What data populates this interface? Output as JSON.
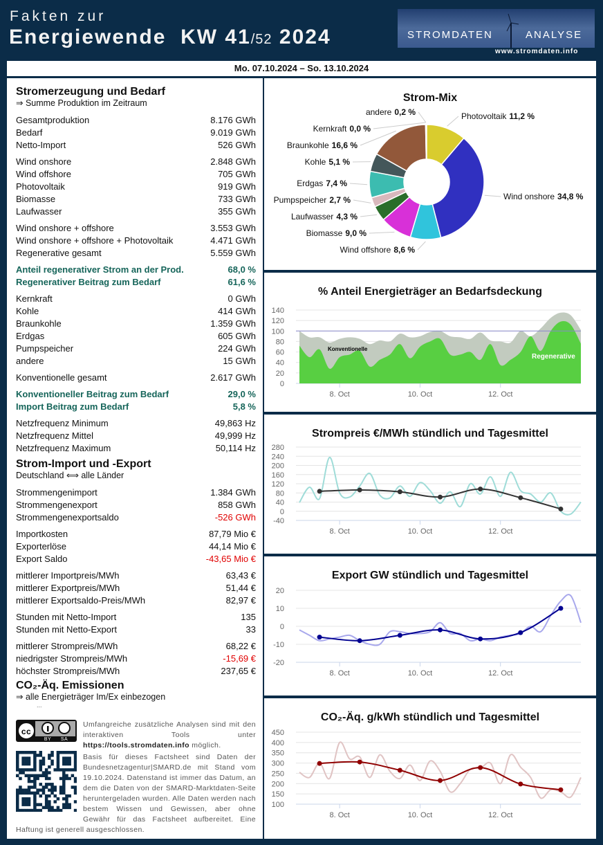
{
  "header": {
    "line1": "Fakten zur",
    "title_main": "Energiewende  KW 41",
    "title_week_total": "/52",
    "title_year": " 2024",
    "logo_left": "STROMDATEN",
    "logo_right": "ANALYSE",
    "url": "www.stromdaten.info",
    "date_range": "Mo. 07.10.2024 – So. 13.10.2024"
  },
  "left": {
    "sec1": {
      "title": "Stromerzeugung und Bedarf",
      "subtitle": "⇒ Summe Produktion im Zeitraum"
    },
    "groups1": [
      [
        {
          "label": "Gesamtproduktion",
          "value": "8.176 GWh"
        },
        {
          "label": "Bedarf",
          "value": "9.019 GWh"
        },
        {
          "label": "Netto-Import",
          "value": "526 GWh"
        }
      ],
      [
        {
          "label": "Wind onshore",
          "value": "2.848 GWh"
        },
        {
          "label": "Wind offshore",
          "value": "705 GWh"
        },
        {
          "label": "Photovoltaik",
          "value": "919 GWh"
        },
        {
          "label": "Biomasse",
          "value": "733 GWh"
        },
        {
          "label": "Laufwasser",
          "value": "355 GWh"
        }
      ],
      [
        {
          "label": "Wind onshore + offshore",
          "value": "3.553 GWh"
        },
        {
          "label": "Wind onshore + offshore + Photovoltaik",
          "value": "4.471 GWh"
        },
        {
          "label": "Regenerative gesamt",
          "value": "5.559 GWh"
        }
      ],
      [
        {
          "label": "Anteil regenerativer Strom an der Prod.",
          "value": "68,0 %",
          "style": "teal"
        },
        {
          "label": "Regenerativer Beitrag zum Bedarf",
          "value": "61,6 %",
          "style": "teal"
        }
      ],
      [
        {
          "label": "Kernkraft",
          "value": "0 GWh"
        },
        {
          "label": "Kohle",
          "value": "414 GWh"
        },
        {
          "label": "Braunkohle",
          "value": "1.359 GWh"
        },
        {
          "label": "Erdgas",
          "value": "605 GWh"
        },
        {
          "label": "Pumpspeicher",
          "value": "224 GWh"
        },
        {
          "label": "andere",
          "value": "15 GWh"
        }
      ],
      [
        {
          "label": "Konventionelle gesamt",
          "value": "2.617 GWh"
        }
      ],
      [
        {
          "label": "Konventioneller Beitrag zum Bedarf",
          "value": "29,0 %",
          "style": "teal"
        },
        {
          "label": "Import Beitrag zum Bedarf",
          "value": "5,8 %",
          "style": "teal"
        }
      ],
      [
        {
          "label": "Netzfrequenz Minimum",
          "value": "49,863 Hz"
        },
        {
          "label": "Netzfrequenz Mittel",
          "value": "49,999 Hz"
        },
        {
          "label": "Netzfrequenz Maximum",
          "value": "50,114 Hz"
        }
      ]
    ],
    "sec2": {
      "title": "Strom-Import und -Export",
      "subtitle": "Deutschland ⟺ alle Länder"
    },
    "groups2": [
      [
        {
          "label": "Strommengenimport",
          "value": "1.384 GWh"
        },
        {
          "label": "Strommengenexport",
          "value": "858 GWh"
        },
        {
          "label": "Strommengenexportsaldo",
          "value": "-526 GWh",
          "style": "red"
        }
      ],
      [
        {
          "label": "Importkosten",
          "value": "87,79 Mio €"
        },
        {
          "label": "Exporterlöse",
          "value": "44,14 Mio €"
        },
        {
          "label": "Export Saldo",
          "value": "-43,65 Mio €",
          "style": "red"
        }
      ],
      [
        {
          "label": "mittlerer Importpreis/MWh",
          "value": "63,43 €"
        },
        {
          "label": "mittlerer Exportpreis/MWh",
          "value": "51,44 €"
        },
        {
          "label": "mittlerer Exportsaldo-Preis/MWh",
          "value": "82,97 €"
        }
      ],
      [
        {
          "label": "Stunden mit Netto-Import",
          "value": "135"
        },
        {
          "label": "Stunden mit Netto-Export",
          "value": "33"
        }
      ],
      [
        {
          "label": "mittlerer Strompreis/MWh",
          "value": "68,22 €"
        },
        {
          "label": "niedrigster Strompreis/MWh",
          "value": "-15,69 €",
          "style": "red"
        },
        {
          "label": "höchster Strompreis/MWh",
          "value": "237,65 €"
        }
      ]
    ],
    "sec3": {
      "title": "CO₂-Äq. Emissionen",
      "subtitle": "⇒ alle Energieträger Im/Ex einbezogen",
      "dots": "..."
    },
    "license": {
      "cc": "cc",
      "by": "BY",
      "sa": "SA"
    },
    "footer": {
      "p1_pre": "Umfangreiche zusätzliche Analysen sind mit den interaktiven Tools unter ",
      "p1_link": "https://tools.stromdaten.info",
      "p1_post": " möglich.",
      "p2": "Basis für dieses Factsheet sind Daten der Bundesnetzagentur|SMARD.de mit Stand vom 19.10.2024. Datenstand ist immer das Datum, an dem die Daten von der SMARD-Marktdaten-Seite heruntergeladen wurden. Alle Daten werden nach bestem Wissen und Gewissen, aber ohne Gewähr für das Factsheet aufbereitet. Eine Haftung ist generell ausgeschlossen."
    }
  },
  "chart_data": [
    {
      "type": "pie",
      "title": "Strom-Mix",
      "donut": true,
      "slices": [
        {
          "name": "Photovoltaik",
          "value": 11.2,
          "label": "11,2 %",
          "color": "#d9cc2e"
        },
        {
          "name": "Wind onshore",
          "value": 34.8,
          "label": "34,8 %",
          "color": "#3030c0"
        },
        {
          "name": "Wind offshore",
          "value": 8.6,
          "label": "8,6 %",
          "color": "#30c4dc"
        },
        {
          "name": "Biomasse",
          "value": 9.0,
          "label": "9,0 %",
          "color": "#d830d8"
        },
        {
          "name": "Laufwasser",
          "value": 4.3,
          "label": "4,3 %",
          "color": "#2a6e2a"
        },
        {
          "name": "Pumpspeicher",
          "value": 2.7,
          "label": "2,7 %",
          "color": "#d8b8bc"
        },
        {
          "name": "Erdgas",
          "value": 7.4,
          "label": "7,4 %",
          "color": "#3cbcb0"
        },
        {
          "name": "Kohle",
          "value": 5.1,
          "label": "5,1 %",
          "color": "#44575a"
        },
        {
          "name": "Braunkohle",
          "value": 16.6,
          "label": "16,6 %",
          "color": "#92583a"
        },
        {
          "name": "Kernkraft",
          "value": 0.0,
          "label": "0,0 %",
          "color": "#888888"
        },
        {
          "name": "andere",
          "value": 0.2,
          "label": "0,2 %",
          "color": "#bbbbbb"
        }
      ]
    },
    {
      "type": "area",
      "title": "% Anteil Energieträger an Bedarfsdeckung",
      "x_ticks": [
        "8. Oct",
        "10. Oct",
        "12. Oct"
      ],
      "x_range": [
        "2024-10-07 00:00",
        "2024-10-14 00:00"
      ],
      "step_hours": 6,
      "ylim": [
        0,
        140
      ],
      "y_ticks": [
        0,
        20,
        40,
        60,
        80,
        100,
        120,
        140
      ],
      "reference_line": 100,
      "series": [
        {
          "name": "Konventionelle",
          "color": "#c2cbbf",
          "values": [
            100,
            88,
            88,
            78,
            85,
            88,
            85,
            75,
            82,
            80,
            95,
            88,
            90,
            98,
            100,
            90,
            88,
            85,
            97,
            82,
            80,
            78,
            100,
            90,
            105,
            125,
            135,
            130,
            102
          ]
        },
        {
          "name": "Regenerative",
          "color": "#58cf42",
          "values": [
            72,
            50,
            65,
            28,
            50,
            55,
            62,
            32,
            45,
            55,
            75,
            48,
            70,
            80,
            85,
            55,
            55,
            60,
            45,
            75,
            35,
            45,
            60,
            90,
            62,
            100,
            118,
            112,
            76
          ]
        }
      ]
    },
    {
      "type": "line",
      "title": "Strompreis €/MWh stündlich und Tagesmittel",
      "x_ticks": [
        "8. Oct",
        "10. Oct",
        "12. Oct"
      ],
      "ylim": [
        -40,
        280
      ],
      "y_ticks": [
        -40,
        0,
        40,
        80,
        120,
        160,
        200,
        240,
        280
      ],
      "step_hours": 6,
      "hourly": {
        "color": "#9fdcd8",
        "values": [
          38,
          105,
          55,
          235,
          80,
          62,
          110,
          165,
          70,
          58,
          110,
          65,
          125,
          90,
          35,
          85,
          20,
          120,
          75,
          150,
          65,
          170,
          90,
          75,
          40,
          80,
          0,
          -12,
          40
        ]
      },
      "daily_mean": {
        "color": "#333333",
        "values": [
          87,
          93,
          85,
          62,
          97,
          59,
          10
        ]
      }
    },
    {
      "type": "line",
      "title": "Export GW stündlich und Tagesmittel",
      "x_ticks": [
        "8. Oct",
        "10. Oct",
        "12. Oct"
      ],
      "ylim": [
        -20,
        20
      ],
      "y_ticks": [
        -20,
        -10,
        0,
        10,
        20
      ],
      "step_hours": 6,
      "hourly": {
        "color": "#a8a8ec",
        "values": [
          -2,
          -5,
          -8,
          -7,
          -6,
          -5,
          -8,
          -10,
          -10,
          -3,
          -3,
          -4,
          -4,
          -3,
          2,
          -4,
          -4,
          -8,
          -7,
          -8,
          -6,
          -5,
          -4,
          0,
          -3,
          6,
          14,
          17,
          2
        ]
      },
      "daily_mean": {
        "color": "#000090",
        "values": [
          -6,
          -8,
          -5,
          -2,
          -7,
          -3.5,
          10
        ]
      }
    },
    {
      "type": "line",
      "title": "CO₂-Äq. g/kWh stündlich und Tagesmittel",
      "x_ticks": [
        "8. Oct",
        "10. Oct",
        "12. Oct"
      ],
      "ylim": [
        100,
        450
      ],
      "y_ticks": [
        100,
        150,
        200,
        250,
        300,
        350,
        400,
        450
      ],
      "step_hours": 6,
      "hourly": {
        "color": "#e0c4c4",
        "values": [
          255,
          230,
          300,
          225,
          400,
          320,
          330,
          230,
          340,
          260,
          225,
          290,
          215,
          310,
          260,
          160,
          200,
          270,
          275,
          300,
          200,
          340,
          280,
          230,
          130,
          170,
          160,
          135,
          230
        ]
      },
      "daily_mean": {
        "color": "#900000",
        "values": [
          298,
          305,
          265,
          215,
          278,
          198,
          170
        ]
      }
    }
  ]
}
